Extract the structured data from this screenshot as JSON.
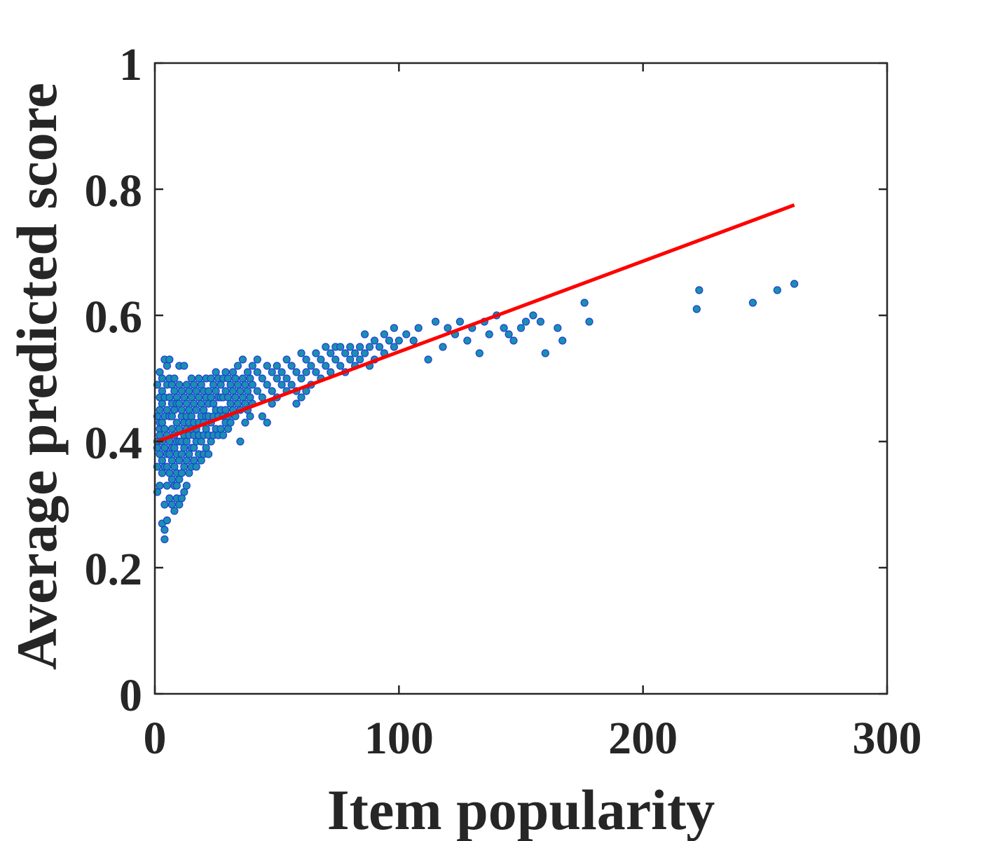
{
  "chart_data": {
    "type": "scatter",
    "title": "",
    "xlabel": "Item popularity",
    "ylabel": "Average predicted score",
    "xlim": [
      0,
      300
    ],
    "ylim": [
      0,
      1
    ],
    "xticks": [
      0,
      100,
      200,
      300
    ],
    "yticks": [
      0,
      0.2,
      0.4,
      0.6,
      0.8,
      1
    ],
    "xtick_labels": [
      "0",
      "100",
      "200",
      "300"
    ],
    "ytick_labels": [
      "0",
      "0.2",
      "0.4",
      "0.6",
      "0.8",
      "1"
    ],
    "grid": false,
    "legend": "none",
    "colors": {
      "marker_fill": "#1a8fb0",
      "marker_edge": "#1f3fd6",
      "fit_line": "#ff0000",
      "axes": "#262626"
    },
    "series": [
      {
        "type": "scatter",
        "points": [
          [
            1,
            0.4
          ],
          [
            1,
            0.36
          ],
          [
            1,
            0.44
          ],
          [
            1,
            0.32
          ],
          [
            1,
            0.49
          ],
          [
            1,
            0.39
          ],
          [
            2,
            0.51
          ],
          [
            2,
            0.47
          ],
          [
            2,
            0.42
          ],
          [
            2,
            0.33
          ],
          [
            2,
            0.45
          ],
          [
            2,
            0.38
          ],
          [
            2,
            0.43
          ],
          [
            2,
            0.41
          ],
          [
            3,
            0.5
          ],
          [
            3,
            0.27
          ],
          [
            3,
            0.35
          ],
          [
            3,
            0.46
          ],
          [
            3,
            0.4
          ],
          [
            3,
            0.43
          ],
          [
            3,
            0.37
          ],
          [
            3,
            0.48
          ],
          [
            4,
            0.53
          ],
          [
            4,
            0.26
          ],
          [
            4,
            0.245
          ],
          [
            4,
            0.3
          ],
          [
            4,
            0.36
          ],
          [
            4,
            0.42
          ],
          [
            4,
            0.47
          ],
          [
            4,
            0.39
          ],
          [
            4,
            0.44
          ],
          [
            5,
            0.52
          ],
          [
            5,
            0.275
          ],
          [
            5,
            0.33
          ],
          [
            5,
            0.38
          ],
          [
            5,
            0.45
          ],
          [
            5,
            0.41
          ],
          [
            5,
            0.49
          ],
          [
            5,
            0.36
          ],
          [
            6,
            0.53
          ],
          [
            6,
            0.31
          ],
          [
            6,
            0.35
          ],
          [
            6,
            0.4
          ],
          [
            6,
            0.44
          ],
          [
            6,
            0.47
          ],
          [
            6,
            0.5
          ],
          [
            6,
            0.38
          ],
          [
            7,
            0.49
          ],
          [
            7,
            0.34
          ],
          [
            7,
            0.42
          ],
          [
            7,
            0.46
          ],
          [
            7,
            0.39
          ],
          [
            7,
            0.3
          ],
          [
            7,
            0.44
          ],
          [
            7,
            0.37
          ],
          [
            8,
            0.5
          ],
          [
            8,
            0.29
          ],
          [
            8,
            0.36
          ],
          [
            8,
            0.41
          ],
          [
            8,
            0.45
          ],
          [
            8,
            0.33
          ],
          [
            8,
            0.48
          ],
          [
            8,
            0.39
          ],
          [
            9,
            0.47
          ],
          [
            9,
            0.33
          ],
          [
            9,
            0.38
          ],
          [
            9,
            0.43
          ],
          [
            9,
            0.31
          ],
          [
            9,
            0.46
          ],
          [
            9,
            0.4
          ],
          [
            9,
            0.35
          ],
          [
            10,
            0.52
          ],
          [
            10,
            0.3
          ],
          [
            10,
            0.37
          ],
          [
            10,
            0.42
          ],
          [
            10,
            0.46
          ],
          [
            10,
            0.34
          ],
          [
            10,
            0.49
          ],
          [
            10,
            0.4
          ],
          [
            11,
            0.48
          ],
          [
            11,
            0.35
          ],
          [
            11,
            0.4
          ],
          [
            11,
            0.44
          ],
          [
            11,
            0.31
          ],
          [
            11,
            0.38
          ],
          [
            11,
            0.45
          ],
          [
            12,
            0.52
          ],
          [
            12,
            0.32
          ],
          [
            12,
            0.39
          ],
          [
            12,
            0.43
          ],
          [
            12,
            0.47
          ],
          [
            12,
            0.36
          ],
          [
            12,
            0.41
          ],
          [
            13,
            0.46
          ],
          [
            13,
            0.37
          ],
          [
            13,
            0.42
          ],
          [
            13,
            0.33
          ],
          [
            13,
            0.49
          ],
          [
            13,
            0.4
          ],
          [
            13,
            0.44
          ],
          [
            14,
            0.45
          ],
          [
            14,
            0.38
          ],
          [
            14,
            0.41
          ],
          [
            14,
            0.35
          ],
          [
            14,
            0.48
          ],
          [
            14,
            0.43
          ],
          [
            15,
            0.47
          ],
          [
            15,
            0.36
          ],
          [
            15,
            0.42
          ],
          [
            15,
            0.39
          ],
          [
            15,
            0.44
          ],
          [
            15,
            0.5
          ],
          [
            16,
            0.46
          ],
          [
            16,
            0.39
          ],
          [
            16,
            0.43
          ],
          [
            16,
            0.37
          ],
          [
            16,
            0.49
          ],
          [
            16,
            0.41
          ],
          [
            17,
            0.48
          ],
          [
            17,
            0.4
          ],
          [
            17,
            0.36
          ],
          [
            17,
            0.45
          ],
          [
            17,
            0.42
          ],
          [
            18,
            0.47
          ],
          [
            18,
            0.38
          ],
          [
            18,
            0.43
          ],
          [
            18,
            0.5
          ],
          [
            18,
            0.41
          ],
          [
            19,
            0.46
          ],
          [
            19,
            0.4
          ],
          [
            19,
            0.44
          ],
          [
            19,
            0.37
          ],
          [
            19,
            0.49
          ],
          [
            20,
            0.48
          ],
          [
            20,
            0.41
          ],
          [
            20,
            0.45
          ],
          [
            20,
            0.38
          ],
          [
            20,
            0.43
          ],
          [
            21,
            0.47
          ],
          [
            21,
            0.42
          ],
          [
            21,
            0.39
          ],
          [
            21,
            0.5
          ],
          [
            21,
            0.44
          ],
          [
            22,
            0.46
          ],
          [
            22,
            0.41
          ],
          [
            22,
            0.44
          ],
          [
            22,
            0.48
          ],
          [
            22,
            0.38
          ],
          [
            23,
            0.47
          ],
          [
            23,
            0.43
          ],
          [
            23,
            0.4
          ],
          [
            23,
            0.5
          ],
          [
            24,
            0.49
          ],
          [
            24,
            0.44
          ],
          [
            24,
            0.41
          ],
          [
            24,
            0.46
          ],
          [
            25,
            0.48
          ],
          [
            25,
            0.42
          ],
          [
            25,
            0.45
          ],
          [
            25,
            0.51
          ],
          [
            26,
            0.47
          ],
          [
            26,
            0.44
          ],
          [
            26,
            0.41
          ],
          [
            26,
            0.5
          ],
          [
            27,
            0.49
          ],
          [
            27,
            0.45
          ],
          [
            27,
            0.42
          ],
          [
            27,
            0.47
          ],
          [
            28,
            0.5
          ],
          [
            28,
            0.44
          ],
          [
            28,
            0.47
          ],
          [
            28,
            0.41
          ],
          [
            29,
            0.48
          ],
          [
            29,
            0.45
          ],
          [
            29,
            0.43
          ],
          [
            29,
            0.51
          ],
          [
            30,
            0.47
          ],
          [
            30,
            0.5
          ],
          [
            30,
            0.44
          ],
          [
            30,
            0.42
          ],
          [
            31,
            0.49
          ],
          [
            31,
            0.46
          ],
          [
            31,
            0.43
          ],
          [
            32,
            0.51
          ],
          [
            32,
            0.48
          ],
          [
            32,
            0.45
          ],
          [
            33,
            0.47
          ],
          [
            33,
            0.5
          ],
          [
            33,
            0.44
          ],
          [
            34,
            0.49
          ],
          [
            34,
            0.46
          ],
          [
            34,
            0.52
          ],
          [
            35,
            0.48
          ],
          [
            35,
            0.45
          ],
          [
            35,
            0.4
          ],
          [
            36,
            0.5
          ],
          [
            36,
            0.47
          ],
          [
            36,
            0.53
          ],
          [
            37,
            0.49
          ],
          [
            37,
            0.46
          ],
          [
            37,
            0.43
          ],
          [
            38,
            0.51
          ],
          [
            38,
            0.48
          ],
          [
            38,
            0.45
          ],
          [
            39,
            0.5
          ],
          [
            39,
            0.47
          ],
          [
            39,
            0.44
          ],
          [
            40,
            0.52
          ],
          [
            40,
            0.49
          ],
          [
            40,
            0.46
          ],
          [
            42,
            0.51
          ],
          [
            42,
            0.48
          ],
          [
            42,
            0.53
          ],
          [
            44,
            0.5
          ],
          [
            44,
            0.47
          ],
          [
            44,
            0.44
          ],
          [
            46,
            0.52
          ],
          [
            46,
            0.49
          ],
          [
            46,
            0.43
          ],
          [
            48,
            0.51
          ],
          [
            48,
            0.48
          ],
          [
            48,
            0.46
          ],
          [
            50,
            0.5
          ],
          [
            50,
            0.52
          ],
          [
            50,
            0.47
          ],
          [
            52,
            0.51
          ],
          [
            52,
            0.49
          ],
          [
            54,
            0.53
          ],
          [
            54,
            0.5
          ],
          [
            54,
            0.48
          ],
          [
            56,
            0.52
          ],
          [
            56,
            0.49
          ],
          [
            58,
            0.51
          ],
          [
            58,
            0.48
          ],
          [
            58,
            0.46
          ],
          [
            60,
            0.54
          ],
          [
            60,
            0.5
          ],
          [
            60,
            0.47
          ],
          [
            62,
            0.53
          ],
          [
            62,
            0.51
          ],
          [
            62,
            0.48
          ],
          [
            64,
            0.52
          ],
          [
            64,
            0.49
          ],
          [
            66,
            0.54
          ],
          [
            66,
            0.51
          ],
          [
            68,
            0.53
          ],
          [
            68,
            0.5
          ],
          [
            70,
            0.55
          ],
          [
            70,
            0.52
          ],
          [
            72,
            0.54
          ],
          [
            72,
            0.51
          ],
          [
            74,
            0.55
          ],
          [
            74,
            0.53
          ],
          [
            76,
            0.52
          ],
          [
            76,
            0.55
          ],
          [
            78,
            0.54
          ],
          [
            78,
            0.51
          ],
          [
            80,
            0.55
          ],
          [
            80,
            0.53
          ],
          [
            82,
            0.54
          ],
          [
            82,
            0.52
          ],
          [
            84,
            0.55
          ],
          [
            84,
            0.53
          ],
          [
            86,
            0.57
          ],
          [
            86,
            0.54
          ],
          [
            88,
            0.55
          ],
          [
            88,
            0.52
          ],
          [
            90,
            0.56
          ],
          [
            90,
            0.53
          ],
          [
            92,
            0.55
          ],
          [
            94,
            0.57
          ],
          [
            94,
            0.54
          ],
          [
            96,
            0.56
          ],
          [
            98,
            0.55
          ],
          [
            98,
            0.58
          ],
          [
            100,
            0.56
          ],
          [
            103,
            0.57
          ],
          [
            106,
            0.56
          ],
          [
            108,
            0.58
          ],
          [
            112,
            0.53
          ],
          [
            115,
            0.59
          ],
          [
            118,
            0.55
          ],
          [
            120,
            0.58
          ],
          [
            123,
            0.57
          ],
          [
            125,
            0.59
          ],
          [
            128,
            0.56
          ],
          [
            130,
            0.58
          ],
          [
            133,
            0.54
          ],
          [
            135,
            0.59
          ],
          [
            137,
            0.57
          ],
          [
            140,
            0.6
          ],
          [
            143,
            0.58
          ],
          [
            145,
            0.57
          ],
          [
            147,
            0.56
          ],
          [
            150,
            0.58
          ],
          [
            152,
            0.59
          ],
          [
            155,
            0.6
          ],
          [
            158,
            0.59
          ],
          [
            160,
            0.54
          ],
          [
            165,
            0.58
          ],
          [
            167,
            0.56
          ],
          [
            176,
            0.62
          ],
          [
            178,
            0.59
          ],
          [
            222,
            0.61
          ],
          [
            223,
            0.64
          ],
          [
            245,
            0.62
          ],
          [
            255,
            0.64
          ],
          [
            262,
            0.65
          ]
        ]
      },
      {
        "type": "line",
        "x": [
          1,
          262
        ],
        "y": [
          0.4,
          0.775
        ]
      }
    ]
  }
}
